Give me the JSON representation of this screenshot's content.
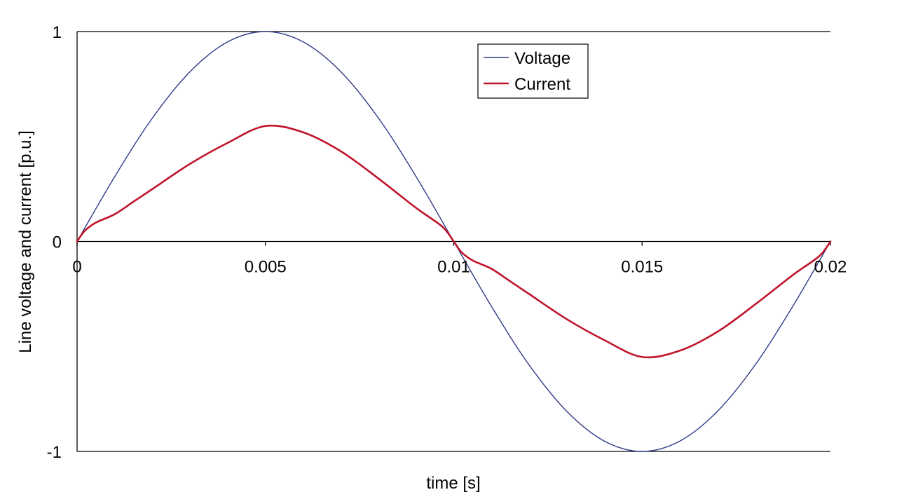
{
  "chart_data": {
    "type": "line",
    "xlabel": "time [s]",
    "ylabel": "Line voltage and current [p.u.]",
    "xlim": [
      0,
      0.02
    ],
    "ylim": [
      -1,
      1
    ],
    "x_ticks": [
      0,
      0.005,
      0.01,
      0.015,
      0.02
    ],
    "x_tick_labels": [
      "0",
      "0.005",
      "0.01",
      "0.015",
      "0.02"
    ],
    "y_ticks": [
      -1,
      0,
      1
    ],
    "y_tick_labels": [
      "-1",
      "0",
      "1"
    ],
    "grid": "horizontal gridlines at y tick positions",
    "legend": {
      "position": "top-center",
      "entries": [
        "Voltage",
        "Current"
      ]
    },
    "series": [
      {
        "name": "Voltage",
        "color": "#2e3a87",
        "x": [
          0,
          0.001,
          0.002,
          0.003,
          0.004,
          0.005,
          0.006,
          0.007,
          0.008,
          0.009,
          0.01,
          0.011,
          0.012,
          0.013,
          0.014,
          0.015,
          0.016,
          0.017,
          0.018,
          0.019,
          0.02
        ],
        "y": [
          0,
          0.309,
          0.588,
          0.809,
          0.951,
          1.0,
          0.951,
          0.809,
          0.588,
          0.309,
          0,
          -0.309,
          -0.588,
          -0.809,
          -0.951,
          -1.0,
          -0.951,
          -0.809,
          -0.588,
          -0.309,
          0
        ]
      },
      {
        "name": "Current",
        "color": "#c0142a",
        "x": [
          0,
          0.0002,
          0.0005,
          0.001,
          0.0015,
          0.002,
          0.003,
          0.004,
          0.005,
          0.006,
          0.007,
          0.008,
          0.009,
          0.0097,
          0.01,
          0.0102,
          0.0105,
          0.011,
          0.0115,
          0.012,
          0.013,
          0.014,
          0.015,
          0.016,
          0.017,
          0.018,
          0.019,
          0.0197,
          0.02
        ],
        "y": [
          0,
          0.05,
          0.09,
          0.13,
          0.19,
          0.25,
          0.37,
          0.47,
          0.55,
          0.52,
          0.43,
          0.3,
          0.16,
          0.07,
          0,
          -0.05,
          -0.09,
          -0.13,
          -0.19,
          -0.25,
          -0.37,
          -0.47,
          -0.55,
          -0.52,
          -0.43,
          -0.3,
          -0.16,
          -0.07,
          0
        ]
      }
    ]
  }
}
